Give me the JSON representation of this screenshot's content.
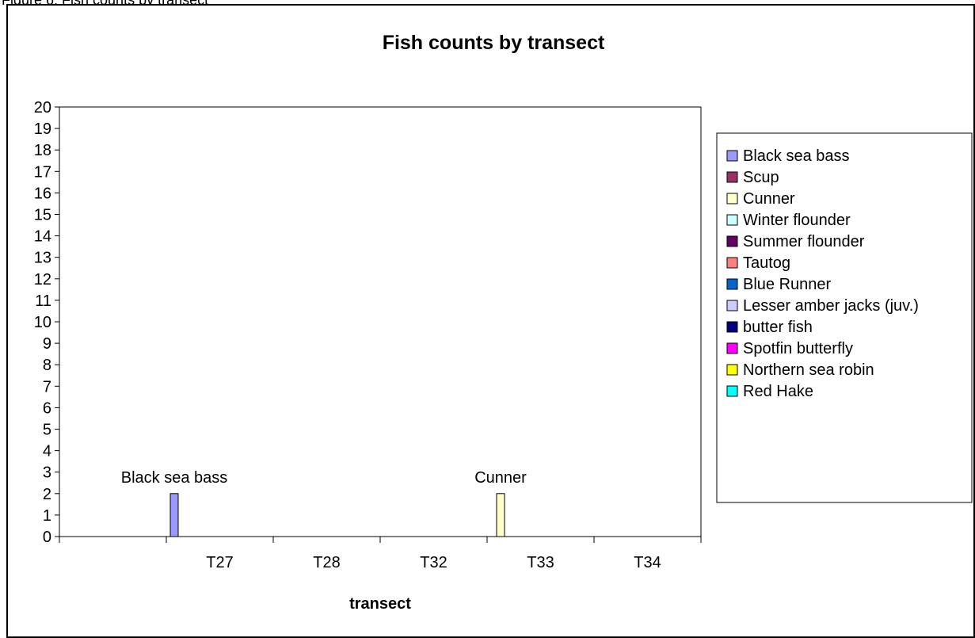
{
  "figure_caption": "Figure 6. Fish counts by transect",
  "chart_data": {
    "type": "bar",
    "title": "Fish counts by transect",
    "xlabel": "transect",
    "ylabel": "",
    "ylim": [
      0,
      20
    ],
    "ytick_step": 1,
    "grid": false,
    "legend_position": "right",
    "categories": [
      "T27",
      "T28",
      "T32",
      "T33",
      "T34"
    ],
    "series": [
      {
        "name": "Black sea bass",
        "color": "#9999ff",
        "values": [
          2,
          0,
          0,
          0,
          0
        ]
      },
      {
        "name": "Scup",
        "color": "#993366",
        "values": [
          0,
          0,
          0,
          0,
          0
        ]
      },
      {
        "name": "Cunner",
        "color": "#ffffcc",
        "values": [
          0,
          0,
          0,
          2,
          0
        ]
      },
      {
        "name": "Winter flounder",
        "color": "#ccffff",
        "values": [
          0,
          0,
          0,
          0,
          0
        ]
      },
      {
        "name": "Summer flounder",
        "color": "#660066",
        "values": [
          0,
          0,
          0,
          0,
          0
        ]
      },
      {
        "name": "Tautog",
        "color": "#ff8080",
        "values": [
          0,
          0,
          0,
          0,
          0
        ]
      },
      {
        "name": "Blue Runner",
        "color": "#0066cc",
        "values": [
          0,
          0,
          0,
          0,
          0
        ]
      },
      {
        "name": "Lesser amber jacks (juv.)",
        "color": "#ccccff",
        "values": [
          0,
          0,
          0,
          0,
          0
        ]
      },
      {
        "name": "butter fish",
        "color": "#000080",
        "values": [
          0,
          0,
          0,
          0,
          0
        ]
      },
      {
        "name": "Spotfin butterfly",
        "color": "#ff00ff",
        "values": [
          0,
          0,
          0,
          0,
          0
        ]
      },
      {
        "name": "Northern sea robin",
        "color": "#ffff00",
        "values": [
          0,
          0,
          0,
          0,
          0
        ]
      },
      {
        "name": "Red Hake",
        "color": "#00ffff",
        "values": [
          0,
          0,
          0,
          0,
          0
        ]
      }
    ],
    "data_labels": [
      {
        "series": "Black sea bass",
        "category": "T27",
        "text": "Black sea bass"
      },
      {
        "series": "Cunner",
        "category": "T33",
        "text": "Cunner"
      }
    ]
  }
}
